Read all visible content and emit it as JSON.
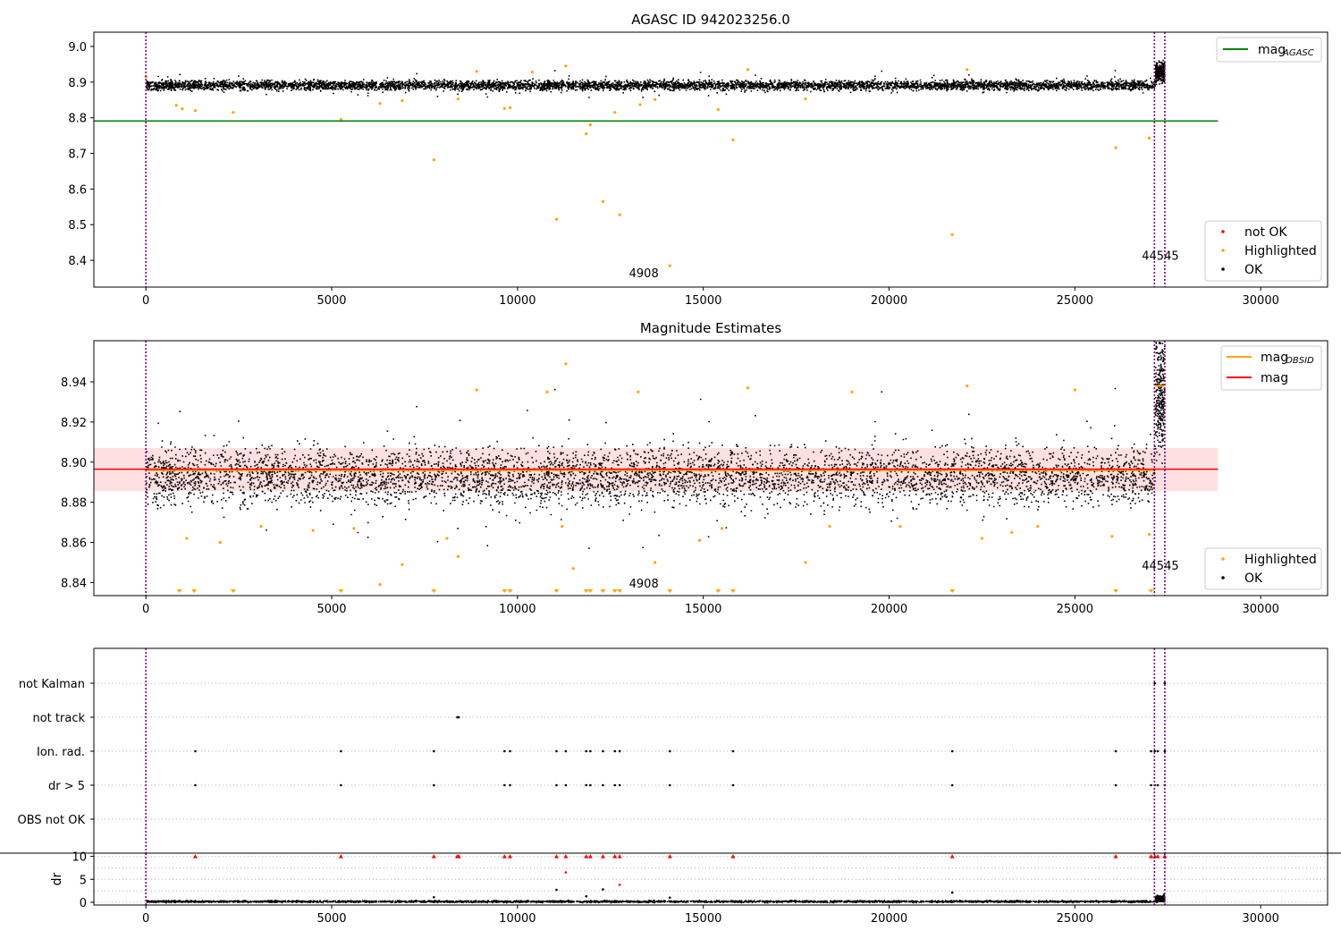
{
  "chart_data": [
    {
      "type": "scatter",
      "title": "AGASC ID 942023256.0",
      "xlim": [
        -1400,
        31800
      ],
      "ylim": [
        8.325,
        9.04
      ],
      "xticks": [
        0,
        5000,
        10000,
        15000,
        20000,
        25000,
        30000
      ],
      "yticks": [
        8.4,
        8.5,
        8.6,
        8.7,
        8.8,
        8.9,
        9.0
      ],
      "ytick_labels": [
        "8.4",
        "8.5",
        "8.6",
        "8.7",
        "8.8",
        "8.9",
        "9.0"
      ],
      "vlines": [
        0,
        27140,
        27420
      ],
      "hline": {
        "name": "magAGASC",
        "y": 8.791,
        "x": [
          -1400,
          28850
        ],
        "color": "#008000"
      },
      "legend_top": [
        {
          "label": "mag",
          "sub": "AGASC",
          "color": "#008000"
        }
      ],
      "legend_bottom": [
        {
          "label": "not OK",
          "color": "#ff0000"
        },
        {
          "label": "Highlighted",
          "color": "#ffa500"
        },
        {
          "label": "OK",
          "color": "#000000"
        }
      ],
      "annotations": [
        {
          "text": "4908",
          "x": 13400,
          "y": 8.352
        },
        {
          "text": "44545",
          "x": 27300,
          "y": 8.402
        }
      ],
      "series": [
        {
          "name": "OK",
          "band": {
            "x": [
              0,
              27150
            ],
            "center": 8.893,
            "spread": 0.009
          },
          "tail": {
            "x": [
              27150,
              27400
            ],
            "center": 8.93,
            "spread": 0.02
          }
        },
        {
          "name": "Highlighted",
          "points": [
            [
              0,
              8.915
            ],
            [
              820,
              8.835
            ],
            [
              980,
              8.825
            ],
            [
              1330,
              8.82
            ],
            [
              2350,
              8.815
            ],
            [
              5250,
              8.795
            ],
            [
              6300,
              8.84
            ],
            [
              6900,
              8.848
            ],
            [
              7750,
              8.682
            ],
            [
              8400,
              8.853
            ],
            [
              9650,
              8.826
            ],
            [
              9800,
              8.828
            ],
            [
              11050,
              8.515
            ],
            [
              11300,
              8.945
            ],
            [
              11850,
              8.755
            ],
            [
              11960,
              8.78
            ],
            [
              12300,
              8.565
            ],
            [
              12620,
              8.815
            ],
            [
              12750,
              8.528
            ],
            [
              13300,
              8.837
            ],
            [
              13700,
              8.851
            ],
            [
              14100,
              8.385
            ],
            [
              15400,
              8.823
            ],
            [
              15800,
              8.738
            ],
            [
              17750,
              8.853
            ],
            [
              21700,
              8.472
            ],
            [
              26100,
              8.716
            ],
            [
              27000,
              8.743
            ],
            [
              10400,
              8.928
            ],
            [
              22100,
              8.935
            ],
            [
              8900,
              8.93
            ],
            [
              16200,
              8.935
            ]
          ]
        }
      ]
    },
    {
      "type": "scatter",
      "title": "Magnitude Estimates",
      "xlim": [
        -1400,
        31800
      ],
      "ylim": [
        8.8335,
        8.9605
      ],
      "xticks": [
        0,
        5000,
        10000,
        15000,
        20000,
        25000,
        30000
      ],
      "yticks": [
        8.84,
        8.86,
        8.88,
        8.9,
        8.92,
        8.94
      ],
      "ytick_labels": [
        "8.84",
        "8.86",
        "8.88",
        "8.90",
        "8.92",
        "8.94"
      ],
      "vlines": [
        0,
        27140,
        27420
      ],
      "band": {
        "y": [
          8.8855,
          8.907
        ],
        "x": [
          -1400,
          28850
        ]
      },
      "hline_mag": {
        "name": "mag",
        "y": 8.8965,
        "color": "#ff0000"
      },
      "hline_obsid": {
        "name": "magOBSID",
        "y": 8.896,
        "x": [
          0,
          27150
        ],
        "tail_y": 8.938,
        "color": "#ffa500"
      },
      "legend_top": [
        {
          "label": "mag",
          "sub": "OBSID",
          "color": "#ffa500"
        },
        {
          "label": "mag",
          "sub": "",
          "color": "#ff0000"
        }
      ],
      "legend_bottom": [
        {
          "label": "Highlighted",
          "color": "#ffa500"
        },
        {
          "label": "OK",
          "color": "#000000"
        }
      ],
      "annotations": [
        {
          "text": "4908",
          "x": 13400,
          "y": 8.8375
        },
        {
          "text": "44545",
          "x": 27300,
          "y": 8.8465
        }
      ],
      "clipped_low_x": [
        900,
        1300,
        2350,
        5250,
        7750,
        9650,
        9800,
        11050,
        11850,
        11960,
        12300,
        12620,
        12750,
        14100,
        15400,
        15800,
        21700,
        26100,
        27050
      ],
      "series": [
        {
          "name": "OK",
          "band": {
            "x": [
              0,
              27150
            ],
            "center": 8.8935,
            "spread": 0.0095
          },
          "tail": {
            "x": [
              27150,
              27400
            ],
            "center": 8.935,
            "spread": 0.02
          }
        },
        {
          "name": "Highlighted",
          "points": [
            [
              1100,
              8.862
            ],
            [
              2000,
              8.86
            ],
            [
              3100,
              8.868
            ],
            [
              4500,
              8.866
            ],
            [
              5600,
              8.867
            ],
            [
              6300,
              8.839
            ],
            [
              6900,
              8.849
            ],
            [
              8100,
              8.862
            ],
            [
              8400,
              8.853
            ],
            [
              11200,
              8.868
            ],
            [
              11500,
              8.847
            ],
            [
              13700,
              8.85
            ],
            [
              14900,
              8.861
            ],
            [
              15500,
              8.867
            ],
            [
              17750,
              8.85
            ],
            [
              18400,
              8.868
            ],
            [
              20300,
              8.868
            ],
            [
              22500,
              8.862
            ],
            [
              23300,
              8.865
            ],
            [
              24000,
              8.868
            ],
            [
              26000,
              8.863
            ],
            [
              27000,
              8.864
            ],
            [
              11300,
              8.949
            ],
            [
              8900,
              8.936
            ],
            [
              10800,
              8.935
            ],
            [
              13250,
              8.935
            ],
            [
              16200,
              8.937
            ],
            [
              22100,
              8.938
            ],
            [
              19000,
              8.935
            ],
            [
              25000,
              8.936
            ]
          ]
        }
      ]
    },
    {
      "type": "scatter",
      "title": "",
      "xlim": [
        -1400,
        31800
      ],
      "categories": [
        "not Kalman",
        "not track",
        "Ion. rad.",
        "dr > 5",
        "OBS not OK"
      ],
      "vlines": [
        0,
        27140,
        27420
      ],
      "flags": {
        "not Kalman": [
          27150,
          27420
        ],
        "not track": [
          8380,
          8400,
          8420
        ],
        "Ion. rad.": [
          1330,
          5250,
          7750,
          9650,
          9800,
          11050,
          11300,
          11850,
          11960,
          12300,
          12620,
          12750,
          14100,
          15800,
          21700,
          26100,
          27050,
          27150,
          27230,
          27420
        ],
        "dr > 5": [
          1330,
          5250,
          7750,
          9650,
          9800,
          11050,
          11300,
          11850,
          11960,
          12300,
          12620,
          12750,
          14100,
          15800,
          21700,
          26100,
          27050,
          27150,
          27230,
          27420
        ],
        "OBS not OK": []
      }
    },
    {
      "type": "scatter",
      "title": "",
      "ylabel": "dr",
      "xlim": [
        -1400,
        31800
      ],
      "ylim": [
        -0.6,
        10.7
      ],
      "xticks": [
        0,
        5000,
        10000,
        15000,
        20000,
        25000,
        30000
      ],
      "yticks": [
        0,
        5,
        10
      ],
      "ytick_labels": [
        "0",
        "5",
        "10"
      ],
      "vlines": [
        0,
        27140,
        27420
      ],
      "capped_x": [
        1330,
        5250,
        7750,
        8380,
        8420,
        9650,
        9800,
        11050,
        11300,
        11850,
        11960,
        12300,
        12620,
        12750,
        14100,
        15800,
        21700,
        26100,
        27050,
        27150,
        27230,
        27420
      ],
      "series": [
        {
          "name": "OK",
          "band": {
            "x": [
              0,
              27150
            ],
            "center": 0.3,
            "spread": 0.15
          },
          "tail": {
            "x": [
              27150,
              27400
            ],
            "center": 0.9,
            "spread": 0.5
          }
        },
        {
          "name": "outliers",
          "points": [
            [
              11300,
              6.5
            ],
            [
              12750,
              3.8
            ],
            [
              11050,
              2.7
            ],
            [
              12300,
              2.8
            ],
            [
              21700,
              2.1
            ],
            [
              11850,
              1.3
            ],
            [
              7750,
              1.1
            ],
            [
              14100,
              1.0
            ]
          ]
        }
      ]
    }
  ]
}
